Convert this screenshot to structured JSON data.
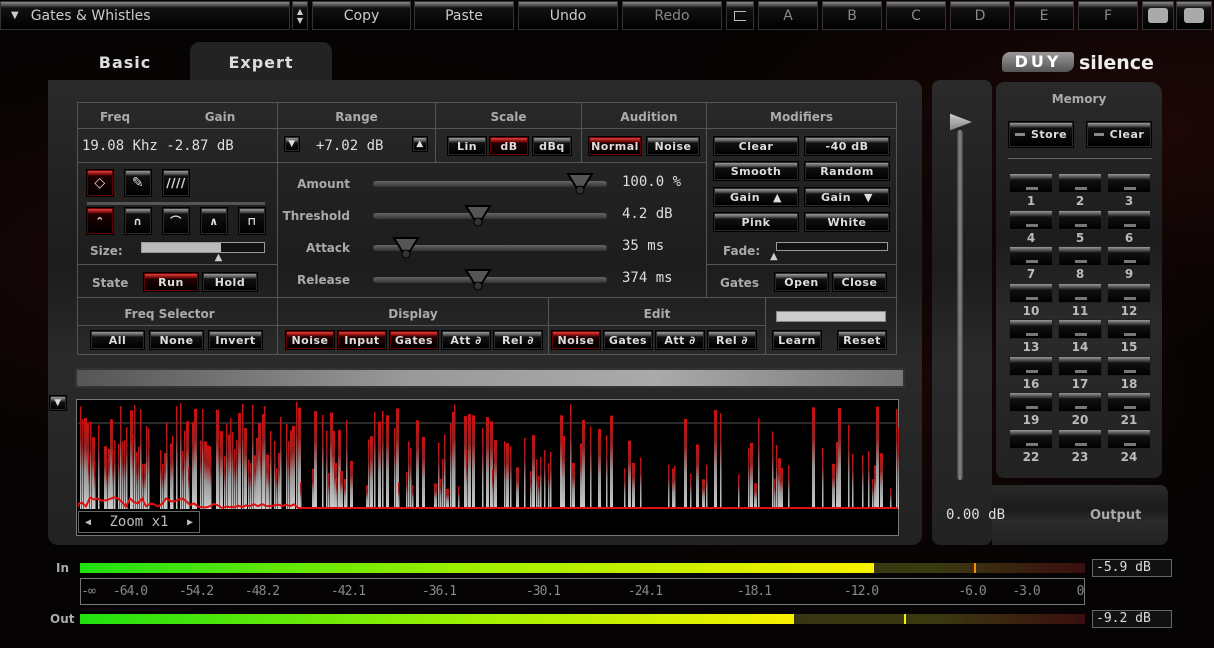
{
  "toolbar": {
    "preset": "Gates & Whistles",
    "copy": "Copy",
    "paste": "Paste",
    "undo": "Undo",
    "redo": "Redo",
    "slots": [
      "A",
      "B",
      "C",
      "D",
      "E",
      "F"
    ]
  },
  "tabs": {
    "basic": "Basic",
    "expert": "Expert",
    "active": "Expert"
  },
  "brand": {
    "logo": "DUY",
    "product": "silence"
  },
  "freq_gain": {
    "freq_label": "Freq",
    "gain_label": "Gain",
    "value": "19.08 Khz -2.87 dB",
    "size_label": "Size:",
    "size_value": 0.65
  },
  "range": {
    "label": "Range",
    "value": "+7.02 dB"
  },
  "scale": {
    "label": "Scale",
    "options": [
      "Lin",
      "dB",
      "dBq"
    ],
    "selected": "dB"
  },
  "audition": {
    "label": "Audition",
    "options": [
      "Normal",
      "Noise"
    ],
    "selected": "Normal"
  },
  "modifiers": {
    "label": "Modifiers",
    "clear": "Clear",
    "minus40": "-40 dB",
    "smooth": "Smooth",
    "random": "Random",
    "gain_up": "Gain",
    "gain_down": "Gain",
    "pink": "Pink",
    "white": "White",
    "fade_label": "Fade:",
    "fade_value": 0
  },
  "gates": {
    "label": "Gates",
    "open": "Open",
    "close": "Close"
  },
  "state": {
    "label": "State",
    "run": "Run",
    "hold": "Hold",
    "selected": "Run"
  },
  "sliders": [
    {
      "label": "Amount",
      "value": "100.0 %",
      "pos": 1.0
    },
    {
      "label": "Threshold",
      "value": "4.2 dB",
      "pos": 0.5
    },
    {
      "label": "Attack",
      "value": "35 ms",
      "pos": 0.15
    },
    {
      "label": "Release",
      "value": "374 ms",
      "pos": 0.5
    }
  ],
  "freq_selector": {
    "label": "Freq Selector",
    "all": "All",
    "none": "None",
    "invert": "Invert"
  },
  "display": {
    "label": "Display",
    "buttons": [
      "Noise",
      "Input",
      "Gates",
      "Att ∂",
      "Rel ∂"
    ],
    "active": [
      "Noise",
      "Input",
      "Gates"
    ]
  },
  "edit": {
    "label": "Edit",
    "buttons": [
      "Noise",
      "Gates",
      "Att ∂",
      "Rel ∂"
    ],
    "active": [
      "Noise"
    ]
  },
  "learn": {
    "learn": "Learn",
    "reset": "Reset"
  },
  "zoom": {
    "label": "Zoom x1"
  },
  "memory": {
    "label": "Memory",
    "store": "Store",
    "clear": "Clear",
    "slots": [
      "1",
      "2",
      "3",
      "4",
      "5",
      "6",
      "7",
      "8",
      "9",
      "10",
      "11",
      "12",
      "13",
      "14",
      "15",
      "16",
      "17",
      "18",
      "19",
      "20",
      "21",
      "22",
      "23",
      "24"
    ]
  },
  "output": {
    "label": "Output",
    "value": "0.00 dB"
  },
  "meters": {
    "in_label": "In",
    "out_label": "Out",
    "in_value": "-5.9 dB",
    "out_value": "-9.2 dB",
    "in_level": 0.79,
    "out_level": 0.71,
    "scale": [
      "-∞",
      "-64.0",
      "-54.2",
      "-48.2",
      "-42.1",
      "-36.1",
      "-30.1",
      "-24.1",
      "-18.1",
      "-12.0",
      "-6.0",
      "-3.0",
      "0"
    ]
  },
  "colors": {
    "accent": "#c01818",
    "meter_green": "#30e010",
    "meter_yellow": "#f0f000"
  }
}
